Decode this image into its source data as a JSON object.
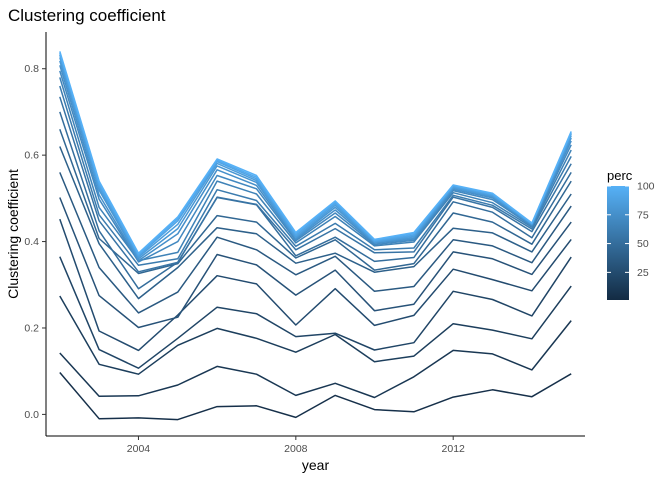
{
  "chart_data": {
    "type": "line",
    "title": "Clustering coefficient",
    "xlabel": "year",
    "ylabel": "Clustering coefficient",
    "xlim": [
      2001.65,
      2015.35
    ],
    "ylim": [
      -0.05,
      0.885
    ],
    "x_ticks": [
      2004,
      2008,
      2012
    ],
    "y_ticks": [
      0.0,
      0.2,
      0.4,
      0.6,
      0.8
    ],
    "x_tick_labels": [
      "2004",
      "2008",
      "2012"
    ],
    "y_tick_labels": [
      "0.0",
      "0.2",
      "0.4",
      "0.6",
      "0.8"
    ],
    "grid": false,
    "legend": {
      "title": "perc",
      "placement": "right",
      "type": "colorbar",
      "range": [
        1,
        100
      ],
      "ticks": [
        25,
        50,
        75,
        100
      ],
      "tick_labels": [
        "25",
        "50",
        "75",
        "100"
      ],
      "low_color": "#132B43",
      "high_color": "#56B1F7"
    },
    "x": [
      2002,
      2003,
      2004,
      2005,
      2006,
      2007,
      2008,
      2009,
      2010,
      2011,
      2012,
      2013,
      2014,
      2015
    ],
    "series": [
      {
        "perc": 5,
        "values": [
          0.097,
          -0.01,
          -0.008,
          -0.012,
          0.018,
          0.02,
          -0.007,
          0.044,
          0.011,
          0.006,
          0.04,
          0.057,
          0.041,
          0.094
        ]
      },
      {
        "perc": 10,
        "values": [
          0.142,
          0.042,
          0.043,
          0.068,
          0.111,
          0.093,
          0.044,
          0.072,
          0.039,
          0.087,
          0.148,
          0.14,
          0.103,
          0.217
        ]
      },
      {
        "perc": 15,
        "values": [
          0.274,
          0.116,
          0.093,
          0.16,
          0.199,
          0.176,
          0.144,
          0.185,
          0.122,
          0.135,
          0.21,
          0.195,
          0.175,
          0.297
        ]
      },
      {
        "perc": 20,
        "values": [
          0.365,
          0.15,
          0.107,
          0.176,
          0.248,
          0.233,
          0.18,
          0.188,
          0.149,
          0.166,
          0.285,
          0.266,
          0.228,
          0.364
        ]
      },
      {
        "perc": 25,
        "values": [
          0.452,
          0.193,
          0.148,
          0.23,
          0.321,
          0.302,
          0.207,
          0.291,
          0.206,
          0.229,
          0.336,
          0.312,
          0.286,
          0.405
        ]
      },
      {
        "perc": 30,
        "values": [
          0.502,
          0.275,
          0.201,
          0.225,
          0.37,
          0.346,
          0.276,
          0.334,
          0.24,
          0.255,
          0.376,
          0.36,
          0.324,
          0.445
        ]
      },
      {
        "perc": 35,
        "values": [
          0.56,
          0.34,
          0.235,
          0.283,
          0.41,
          0.381,
          0.323,
          0.366,
          0.285,
          0.296,
          0.404,
          0.39,
          0.351,
          0.482
        ]
      },
      {
        "perc": 40,
        "values": [
          0.62,
          0.395,
          0.268,
          0.34,
          0.432,
          0.418,
          0.35,
          0.373,
          0.329,
          0.342,
          0.431,
          0.42,
          0.376,
          0.51
        ]
      },
      {
        "perc": 45,
        "values": [
          0.66,
          0.407,
          0.326,
          0.349,
          0.46,
          0.445,
          0.362,
          0.404,
          0.334,
          0.349,
          0.466,
          0.445,
          0.394,
          0.54
        ]
      },
      {
        "perc": 50,
        "values": [
          0.7,
          0.425,
          0.291,
          0.352,
          0.502,
          0.485,
          0.367,
          0.41,
          0.354,
          0.363,
          0.492,
          0.468,
          0.409,
          0.56
        ]
      },
      {
        "perc": 55,
        "values": [
          0.735,
          0.448,
          0.33,
          0.352,
          0.503,
          0.486,
          0.381,
          0.43,
          0.374,
          0.376,
          0.503,
          0.479,
          0.423,
          0.58
        ]
      },
      {
        "perc": 60,
        "values": [
          0.76,
          0.462,
          0.345,
          0.36,
          0.52,
          0.495,
          0.389,
          0.442,
          0.381,
          0.385,
          0.507,
          0.484,
          0.429,
          0.597
        ]
      },
      {
        "perc": 65,
        "values": [
          0.78,
          0.479,
          0.356,
          0.375,
          0.54,
          0.51,
          0.397,
          0.458,
          0.39,
          0.399,
          0.513,
          0.49,
          0.433,
          0.612
        ]
      },
      {
        "perc": 70,
        "values": [
          0.795,
          0.498,
          0.353,
          0.4,
          0.553,
          0.522,
          0.402,
          0.466,
          0.393,
          0.403,
          0.518,
          0.497,
          0.436,
          0.624
        ]
      },
      {
        "perc": 75,
        "values": [
          0.808,
          0.508,
          0.356,
          0.418,
          0.566,
          0.53,
          0.405,
          0.473,
          0.396,
          0.406,
          0.521,
          0.501,
          0.438,
          0.633
        ]
      },
      {
        "perc": 80,
        "values": [
          0.818,
          0.519,
          0.36,
          0.43,
          0.575,
          0.537,
          0.408,
          0.479,
          0.398,
          0.409,
          0.524,
          0.504,
          0.439,
          0.64
        ]
      },
      {
        "perc": 85,
        "values": [
          0.826,
          0.525,
          0.364,
          0.44,
          0.581,
          0.541,
          0.41,
          0.484,
          0.399,
          0.412,
          0.526,
          0.506,
          0.44,
          0.645
        ]
      },
      {
        "perc": 90,
        "values": [
          0.832,
          0.53,
          0.367,
          0.448,
          0.585,
          0.545,
          0.414,
          0.488,
          0.401,
          0.415,
          0.528,
          0.508,
          0.441,
          0.649
        ]
      },
      {
        "perc": 95,
        "values": [
          0.836,
          0.535,
          0.37,
          0.453,
          0.588,
          0.549,
          0.418,
          0.491,
          0.403,
          0.418,
          0.53,
          0.51,
          0.442,
          0.652
        ]
      },
      {
        "perc": 100,
        "values": [
          0.84,
          0.54,
          0.373,
          0.457,
          0.591,
          0.553,
          0.421,
          0.494,
          0.405,
          0.421,
          0.531,
          0.512,
          0.443,
          0.655
        ]
      }
    ]
  }
}
